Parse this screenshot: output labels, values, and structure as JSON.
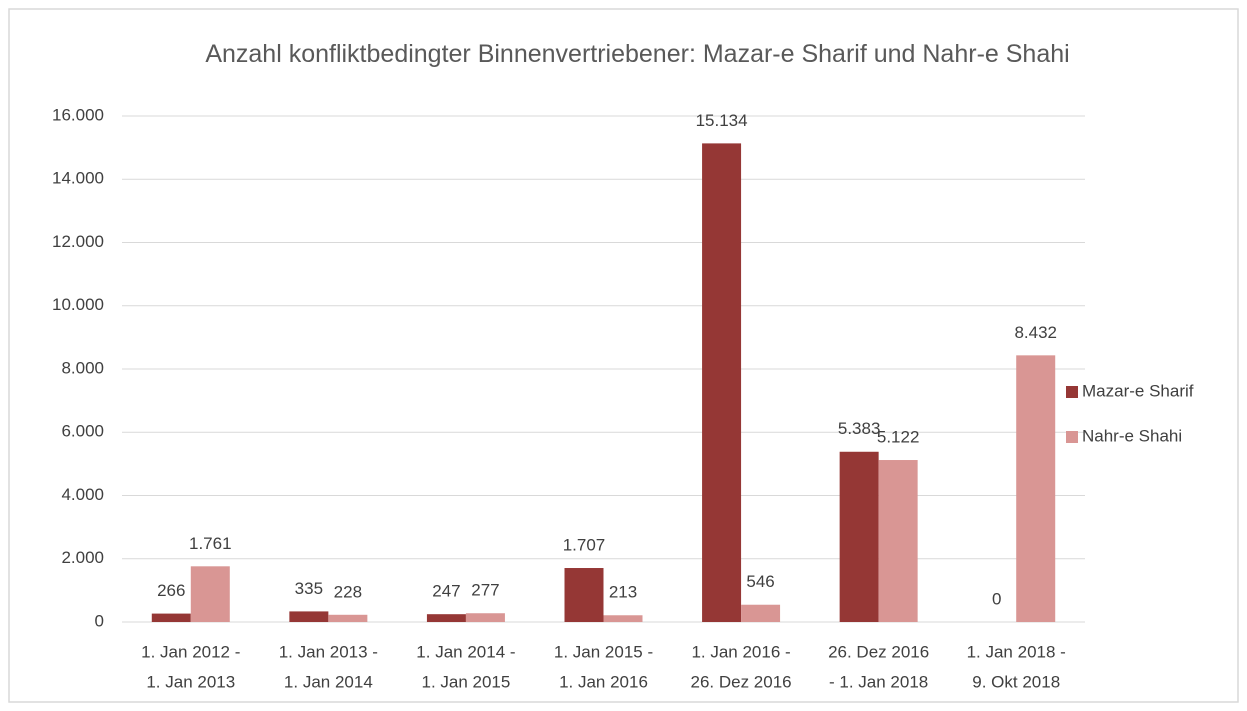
{
  "chart_data": {
    "type": "bar",
    "title": "Anzahl konfliktbedingter Binnenvertriebener: Mazar-e Sharif und Nahr-e Shahi",
    "categories": [
      [
        "1. Jan 2012 -",
        "1. Jan 2013"
      ],
      [
        "1. Jan 2013 -",
        "1. Jan 2014"
      ],
      [
        "1. Jan 2014 -",
        "1. Jan 2015"
      ],
      [
        "1. Jan 2015 -",
        "1. Jan 2016"
      ],
      [
        "1. Jan 2016 -",
        "26. Dez 2016"
      ],
      [
        "26. Dez 2016",
        "- 1. Jan 2018"
      ],
      [
        "1. Jan 2018 -",
        "9. Okt 2018"
      ]
    ],
    "series": [
      {
        "name": "Mazar-e Sharif",
        "color": "#953735",
        "values": [
          266,
          335,
          247,
          1707,
          15134,
          5383,
          0
        ],
        "value_labels": [
          "266",
          "335",
          "247",
          "1.707",
          "15.134",
          "5.383",
          "0"
        ]
      },
      {
        "name": "Nahr-e Shahi",
        "color": "#d99694",
        "values": [
          1761,
          228,
          277,
          213,
          546,
          5122,
          8432
        ],
        "value_labels": [
          "1.761",
          "228",
          "277",
          "213",
          "546",
          "5.122",
          "8.432"
        ]
      }
    ],
    "ylim": [
      0,
      16000
    ],
    "yticks": [
      0,
      {
        "value": 2000,
        "label": "2.000"
      },
      {
        "value": 4000,
        "label": "4.000"
      },
      {
        "value": 6000,
        "label": "6.000"
      },
      {
        "value": 8000,
        "label": "8.000"
      },
      {
        "value": 10000,
        "label": "10.000"
      },
      {
        "value": 12000,
        "label": "12.000"
      },
      {
        "value": 14000,
        "label": "14.000"
      },
      {
        "value": 16000,
        "label": "16.000"
      }
    ],
    "grid": true,
    "legend": "right"
  }
}
